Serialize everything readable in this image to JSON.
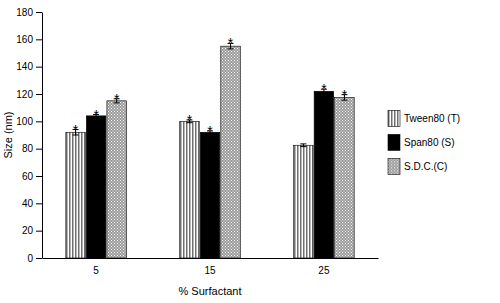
{
  "chart_data": {
    "type": "bar",
    "x_label": "% Surfactant",
    "y_label": "Size (nm)",
    "categories": [
      "5",
      "15",
      "25"
    ],
    "ylim": [
      0,
      180
    ],
    "yticks": [
      0,
      20,
      40,
      60,
      80,
      100,
      120,
      140,
      160,
      180
    ],
    "legend": "right",
    "series": [
      {
        "name": "Tween80 (T)",
        "color": "#707070",
        "values": [
          92,
          100,
          82.5
        ],
        "errors": [
          2,
          1,
          1
        ],
        "annotations": [
          "*",
          "*",
          null
        ]
      },
      {
        "name": "Span80 (S)",
        "color": "#000000",
        "values": [
          104,
          92,
          122
        ],
        "errors": [
          1,
          1,
          1.5
        ],
        "annotations": [
          "*",
          "*",
          "*"
        ]
      },
      {
        "name": "S.D.C.(C)",
        "color": "#9a9a9a",
        "values": [
          115,
          155,
          117.5
        ],
        "errors": [
          1.5,
          2,
          2
        ],
        "annotations": [
          "*",
          "*",
          "*"
        ]
      }
    ]
  }
}
